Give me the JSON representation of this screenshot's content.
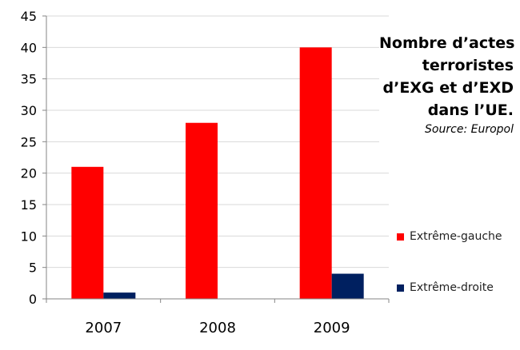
{
  "chart_data": {
    "type": "bar",
    "categories": [
      "2007",
      "2008",
      "2009"
    ],
    "series": [
      {
        "name": "Extrême-gauche",
        "color": "#ff0000",
        "values": [
          21,
          28,
          40
        ]
      },
      {
        "name": "Extrême-droite",
        "color": "#002060",
        "values": [
          1,
          0,
          4
        ]
      }
    ],
    "title_lines": [
      "Nombre d’actes",
      "terroristes",
      "d’EXG et d’EXD",
      "dans l’UE."
    ],
    "source": "Source: Europol",
    "ylim": [
      0,
      45
    ],
    "yticks": [
      0,
      5,
      10,
      15,
      20,
      25,
      30,
      35,
      40,
      45
    ],
    "grid": true,
    "legend": "right"
  }
}
